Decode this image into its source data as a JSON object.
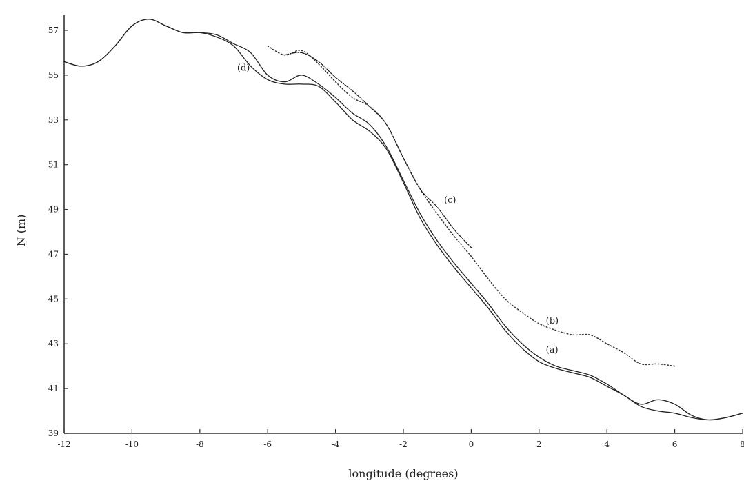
{
  "chart_data": {
    "type": "line",
    "xlabel": "longitude (degrees)",
    "ylabel": "N (m)",
    "xlim": [
      -12,
      8
    ],
    "ylim": [
      39,
      58
    ],
    "x_ticks": [
      -12,
      -10,
      -8,
      -6,
      -4,
      -2,
      0,
      2,
      4,
      6,
      8
    ],
    "x_tick_labels": [
      "-12",
      "-10",
      "-8",
      "-6",
      "-4",
      "-2",
      "0",
      "2",
      "4",
      "6",
      "8"
    ],
    "y_ticks": [
      39,
      41,
      43,
      45,
      47,
      49,
      51,
      53,
      55,
      57
    ],
    "y_tick_labels": [
      "39",
      "41",
      "43",
      "45",
      "47",
      "49",
      "51",
      "53",
      "55",
      "57"
    ],
    "grid": false,
    "series": [
      {
        "name": "(a)",
        "style": "solid",
        "color": "#222222",
        "x": [
          -12,
          -11.5,
          -11,
          -10.5,
          -10,
          -9.5,
          -9,
          -8.5,
          -8,
          -7.5,
          -7,
          -6.5,
          -6,
          -5.5,
          -5,
          -4.5,
          -4,
          -3.5,
          -3,
          -2.5,
          -2,
          -1.5,
          -1,
          -0.5,
          0,
          0.5,
          1,
          1.5,
          2,
          2.5,
          3,
          3.5,
          4,
          4.5,
          5,
          5.5,
          6,
          6.5,
          7,
          7.5,
          8
        ],
        "y": [
          55.6,
          55.4,
          55.6,
          56.3,
          57.2,
          57.5,
          57.2,
          56.9,
          56.9,
          56.8,
          56.4,
          56.0,
          55.0,
          54.7,
          55.0,
          54.6,
          54.0,
          53.3,
          52.8,
          51.8,
          50.3,
          48.8,
          47.6,
          46.6,
          45.7,
          44.8,
          43.8,
          43.0,
          42.4,
          42.0,
          41.8,
          41.6,
          41.2,
          40.7,
          40.3,
          40.5,
          40.3,
          39.8,
          39.6,
          39.7,
          39.9
        ]
      },
      {
        "name": "(d)",
        "style": "solid",
        "color": "#222222",
        "x": [
          -12,
          -11.5,
          -11,
          -10.5,
          -10,
          -9.5,
          -9,
          -8.5,
          -8,
          -7.5,
          -7,
          -6.5,
          -6,
          -5.5,
          -5,
          -4.5,
          -4,
          -3.5,
          -3,
          -2.5,
          -2,
          -1.5,
          -1,
          -0.5,
          0,
          0.5,
          1,
          1.5,
          2,
          2.5,
          3,
          3.5,
          4,
          4.5,
          5,
          5.5,
          6,
          6.5,
          7,
          7.5,
          8
        ],
        "y": [
          55.6,
          55.4,
          55.6,
          56.3,
          57.2,
          57.5,
          57.2,
          56.9,
          56.9,
          56.7,
          56.3,
          55.4,
          54.8,
          54.6,
          54.6,
          54.5,
          53.8,
          53.0,
          52.5,
          51.7,
          50.2,
          48.6,
          47.4,
          46.4,
          45.5,
          44.6,
          43.6,
          42.8,
          42.2,
          41.9,
          41.7,
          41.5,
          41.1,
          40.7,
          40.2,
          40.0,
          39.9,
          39.7,
          39.6,
          39.7,
          39.9
        ]
      },
      {
        "name": "(b)",
        "style": "dotted",
        "color": "#333333",
        "x": [
          -6,
          -5.5,
          -5,
          -4.5,
          -4,
          -3.5,
          -3,
          -2.5,
          -2,
          -1.5,
          -1,
          -0.5,
          0,
          0.5,
          1,
          1.5,
          2,
          2.5,
          3,
          3.5,
          4,
          4.5,
          5,
          5.5,
          6
        ],
        "y": [
          56.3,
          55.9,
          56.1,
          55.5,
          54.7,
          54.0,
          53.6,
          52.8,
          51.3,
          49.9,
          48.8,
          47.8,
          46.9,
          45.9,
          45.0,
          44.4,
          43.9,
          43.6,
          43.4,
          43.4,
          43.0,
          42.6,
          42.1,
          42.1,
          42.0
        ]
      },
      {
        "name": "(c)",
        "style": "dashdot",
        "color": "#222222",
        "x": [
          -5.5,
          -5,
          -4.5,
          -4,
          -3.5,
          -3,
          -2.5,
          -2,
          -1.5,
          -1,
          -0.5,
          0
        ],
        "y": [
          55.9,
          56.0,
          55.6,
          54.9,
          54.3,
          53.6,
          52.8,
          51.3,
          49.9,
          49.1,
          48.1,
          47.3
        ]
      }
    ],
    "annotations": [
      {
        "text": "(a)",
        "x": 2.2,
        "y": 42.6
      },
      {
        "text": "(b)",
        "x": 2.2,
        "y": 43.9
      },
      {
        "text": "(c)",
        "x": -0.8,
        "y": 49.3
      },
      {
        "text": "(d)",
        "x": -6.9,
        "y": 55.2
      }
    ]
  }
}
